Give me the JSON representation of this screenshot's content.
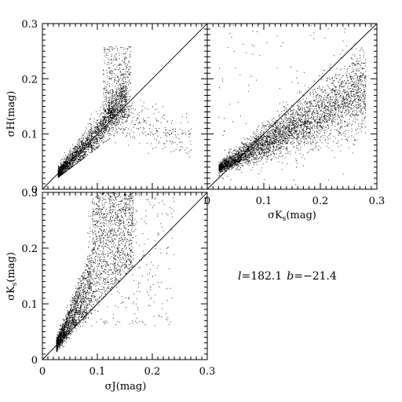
{
  "chart_data": [
    {
      "type": "scatter",
      "panel": "top-left",
      "xlabel": "",
      "ylabel": "σH(mag)",
      "xlim": [
        0,
        0.3
      ],
      "ylim": [
        0,
        0.3
      ],
      "x_tick_labels": [],
      "y_tick_labels": [
        "0",
        "0.1",
        "0.2",
        "0.3"
      ],
      "reference_line": "y = x",
      "density_description": "dense cloud rising from (0.03,0.03) to (0.15,0.13), upper plume near x=0.13-0.15 reaching y~0.26, sparse tail to x~0.26",
      "sample_points": [
        [
          0.03,
          0.035
        ],
        [
          0.04,
          0.05
        ],
        [
          0.05,
          0.065
        ],
        [
          0.06,
          0.075
        ],
        [
          0.07,
          0.085
        ],
        [
          0.08,
          0.09
        ],
        [
          0.09,
          0.1
        ],
        [
          0.1,
          0.11
        ],
        [
          0.11,
          0.12
        ],
        [
          0.12,
          0.13
        ],
        [
          0.13,
          0.14
        ],
        [
          0.14,
          0.15
        ],
        [
          0.15,
          0.16
        ],
        [
          0.14,
          0.22
        ],
        [
          0.15,
          0.24
        ],
        [
          0.2,
          0.15
        ],
        [
          0.26,
          0.1
        ]
      ]
    },
    {
      "type": "scatter",
      "panel": "top-right",
      "xlabel": "σKs(mag)",
      "xlabel_main": "σK",
      "xlabel_sub": "s",
      "xlabel_tail": "(mag)",
      "ylabel": "",
      "xlim": [
        0,
        0.3
      ],
      "ylim": [
        0,
        0.3
      ],
      "x_tick_labels": [
        "0",
        "0.1",
        "0.2",
        "0.3"
      ],
      "y_tick_labels": [],
      "reference_line": "y = x",
      "density_description": "band from (0.02,0.025) to (0.25,0.15) lying below the diagonal at large x",
      "sample_points": [
        [
          0.02,
          0.025
        ],
        [
          0.05,
          0.045
        ],
        [
          0.08,
          0.06
        ],
        [
          0.1,
          0.075
        ],
        [
          0.12,
          0.09
        ],
        [
          0.15,
          0.1
        ],
        [
          0.18,
          0.12
        ],
        [
          0.2,
          0.13
        ],
        [
          0.22,
          0.14
        ],
        [
          0.25,
          0.15
        ],
        [
          0.27,
          0.14
        ]
      ]
    },
    {
      "type": "scatter",
      "panel": "bottom-left",
      "xlabel": "σJ(mag)",
      "ylabel": "σKs(mag)",
      "ylabel_main": "σK",
      "ylabel_sub": "s",
      "ylabel_tail": "(mag)",
      "xlim": [
        0,
        0.3
      ],
      "ylim": [
        0,
        0.3
      ],
      "x_tick_labels": [
        "0",
        "0.1",
        "0.2",
        "0.3"
      ],
      "y_tick_labels": [
        "0",
        "0.1",
        "0.2",
        "0.3"
      ],
      "reference_line": "y = x",
      "density_description": "cloud starting at (0.03,0.03) fanning upward above the diagonal, reaching y~0.3 near x=0.1-0.15",
      "sample_points": [
        [
          0.03,
          0.03
        ],
        [
          0.04,
          0.06
        ],
        [
          0.05,
          0.09
        ],
        [
          0.06,
          0.12
        ],
        [
          0.07,
          0.15
        ],
        [
          0.08,
          0.17
        ],
        [
          0.1,
          0.2
        ],
        [
          0.12,
          0.22
        ],
        [
          0.14,
          0.24
        ],
        [
          0.15,
          0.27
        ],
        [
          0.1,
          0.29
        ],
        [
          0.18,
          0.18
        ],
        [
          0.2,
          0.15
        ]
      ]
    }
  ],
  "annotation": {
    "l_symbol": "l",
    "l_value": "=182.1",
    "b_symbol": "b",
    "b_value": "=−21.4"
  }
}
